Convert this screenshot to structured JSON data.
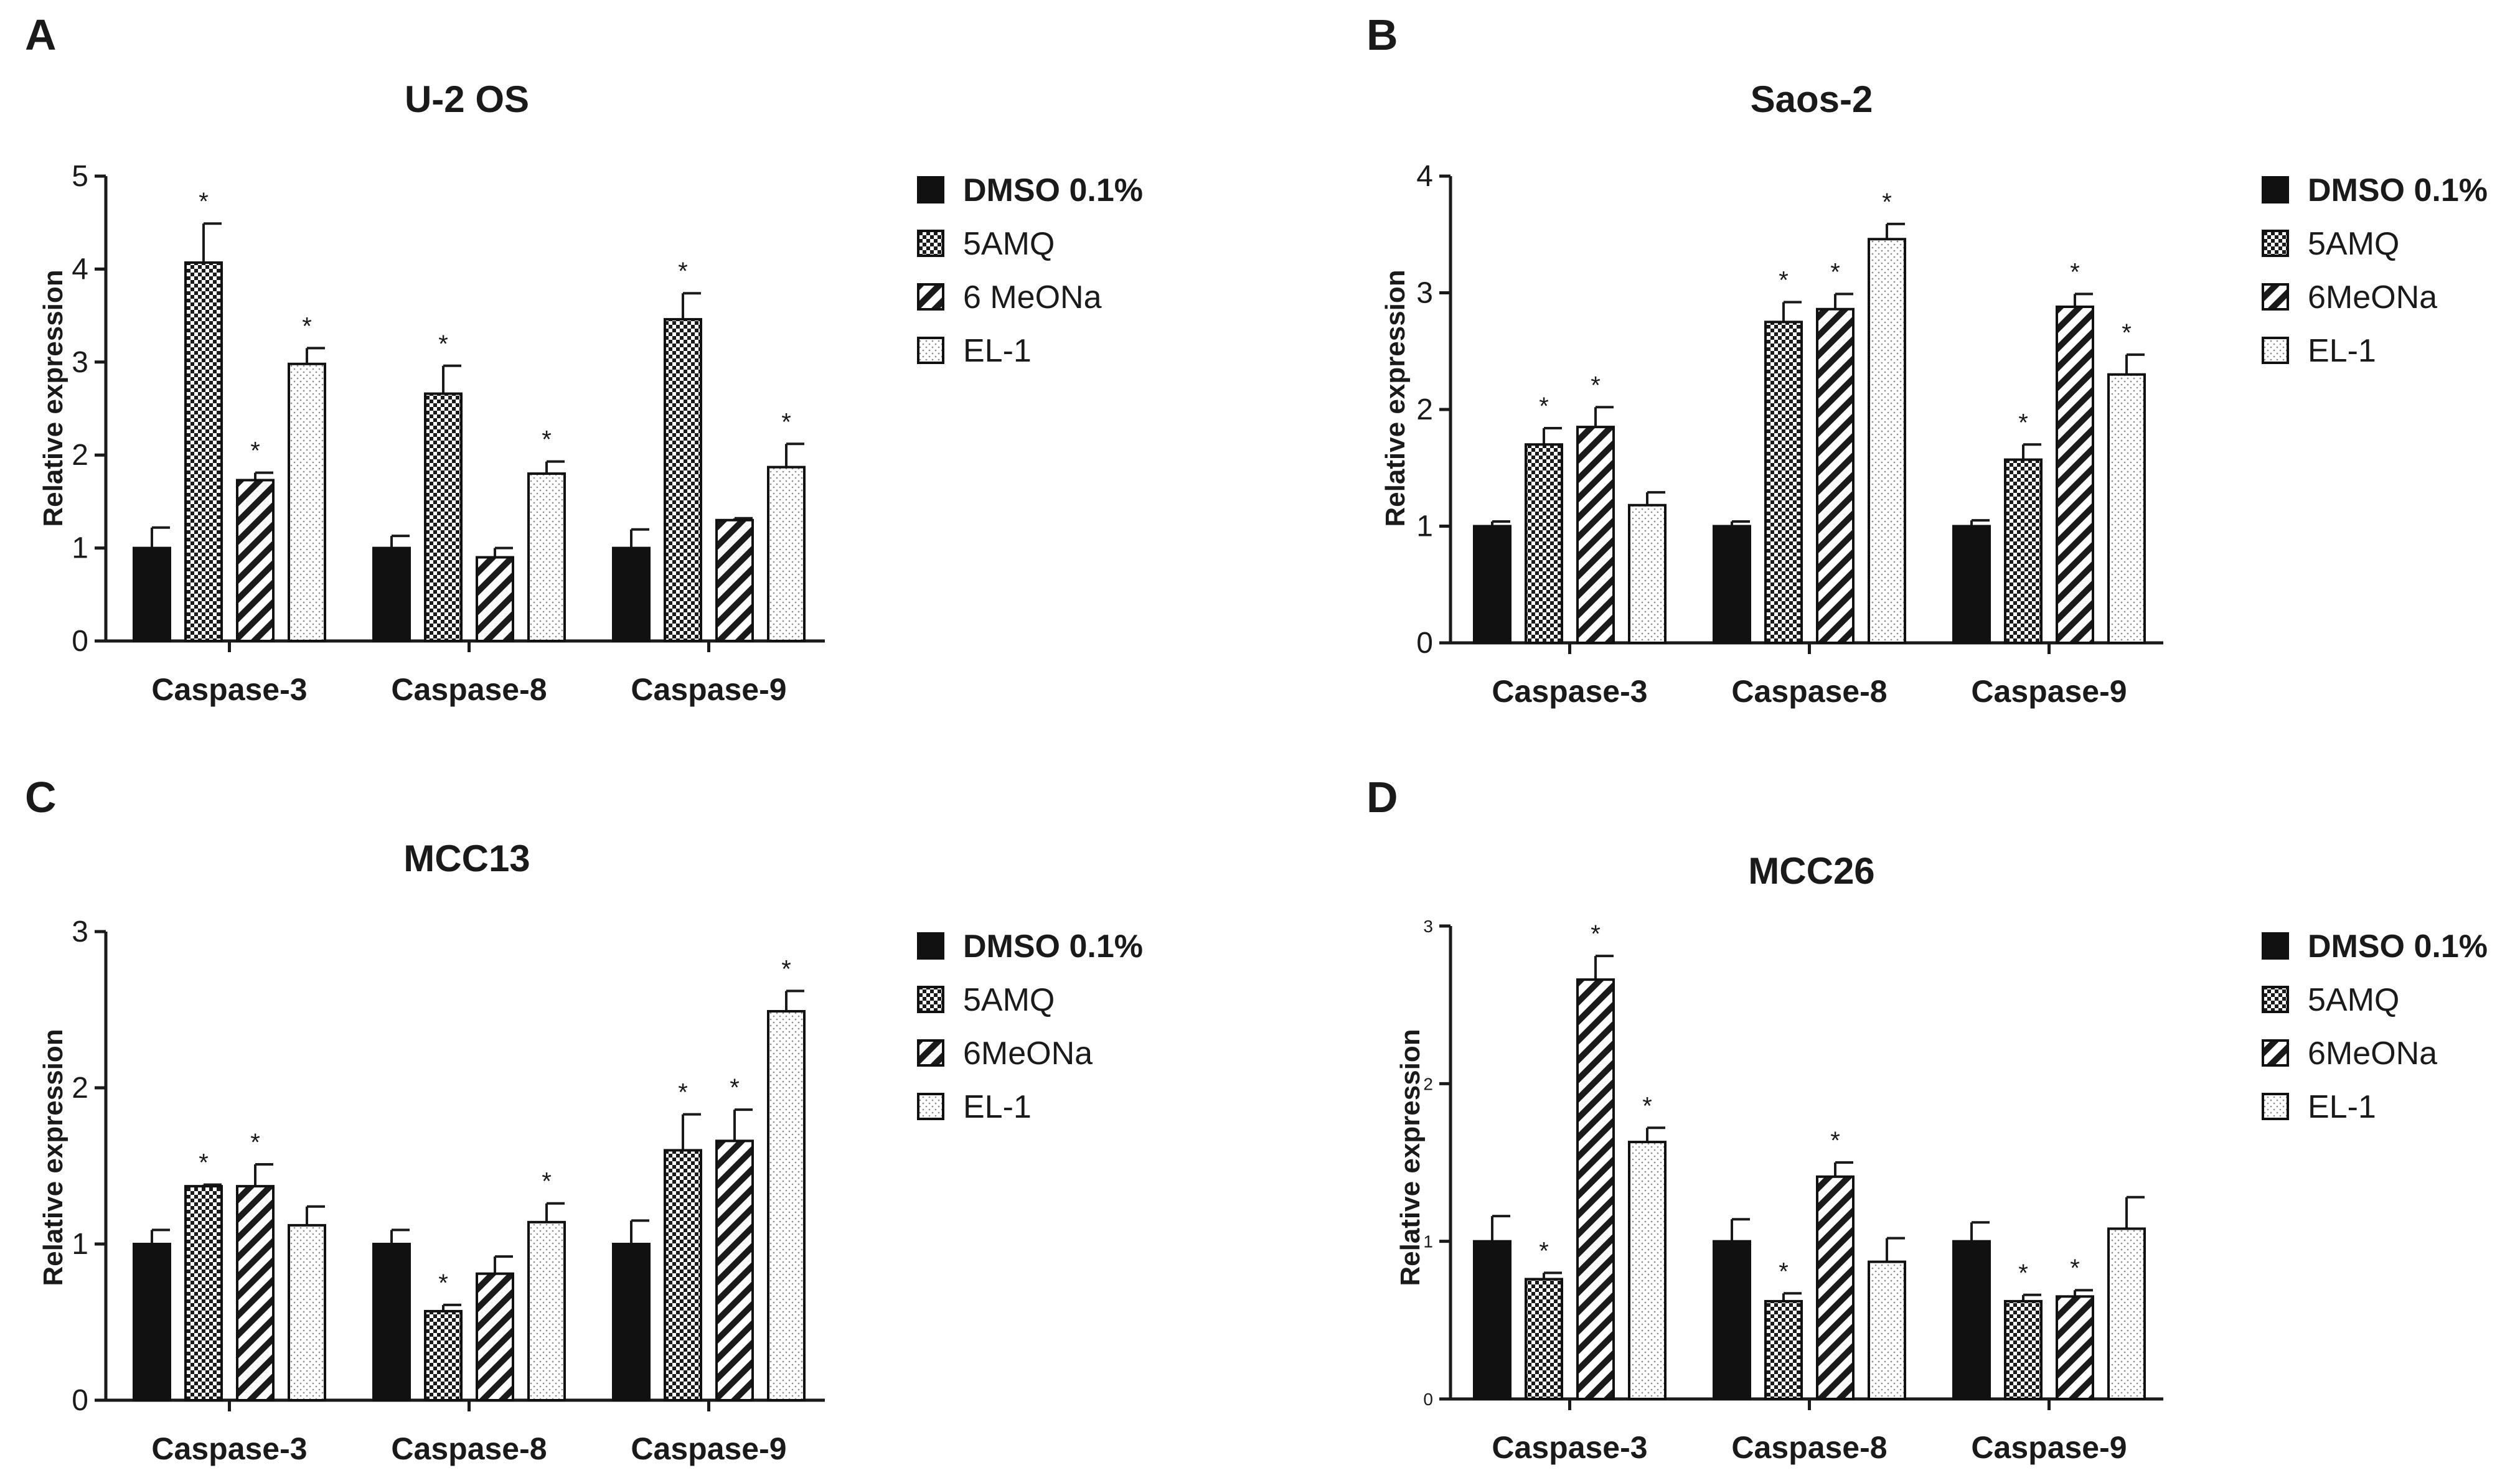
{
  "figure": {
    "legend_series": [
      "DMSO 0.1%",
      "5AMQ",
      "6 MeONa",
      "EL-1"
    ]
  },
  "chart_data": [
    {
      "type": "bar",
      "panel": "A",
      "title": "U-2 OS",
      "ylabel": "Relative expression",
      "xlabel": "",
      "ylim": [
        0,
        5
      ],
      "yticks": [
        "0",
        "1",
        "2",
        "3",
        "4",
        "5"
      ],
      "categories": [
        "Caspase-3",
        "Caspase-8",
        "Caspase-9"
      ],
      "legend": [
        "DMSO 0.1%",
        "5AMQ",
        "6 MeONa",
        "EL-1"
      ],
      "series": [
        {
          "name": "DMSO 0.1%",
          "pattern": "solid",
          "values": [
            1.0,
            1.0,
            1.0
          ],
          "errors": [
            0.22,
            0.13,
            0.2
          ],
          "sig": [
            "",
            "",
            ""
          ]
        },
        {
          "name": "5AMQ",
          "pattern": "checker",
          "values": [
            4.07,
            2.66,
            3.46
          ],
          "errors": [
            0.42,
            0.3,
            0.28
          ],
          "sig": [
            "*",
            "*",
            "*"
          ]
        },
        {
          "name": "6 MeONa",
          "pattern": "hatch",
          "values": [
            1.73,
            0.9,
            1.3
          ],
          "errors": [
            0.08,
            0.1,
            0.02
          ],
          "sig": [
            "*",
            "",
            ""
          ]
        },
        {
          "name": "EL-1",
          "pattern": "dots",
          "values": [
            2.98,
            1.8,
            1.87
          ],
          "errors": [
            0.17,
            0.13,
            0.25
          ],
          "sig": [
            "*",
            "*",
            "*"
          ]
        }
      ]
    },
    {
      "type": "bar",
      "panel": "B",
      "title": "Saos-2",
      "ylabel": "Relative expression",
      "xlabel": "",
      "ylim": [
        0,
        4
      ],
      "yticks": [
        "0",
        "1",
        "2",
        "3",
        "4"
      ],
      "categories": [
        "Caspase-3",
        "Caspase-8",
        "Caspase-9"
      ],
      "legend": [
        "DMSO 0.1%",
        "5AMQ",
        "6MeONa",
        "EL-1"
      ],
      "series": [
        {
          "name": "DMSO 0.1%",
          "pattern": "solid",
          "values": [
            1.0,
            1.0,
            1.0
          ],
          "errors": [
            0.04,
            0.04,
            0.05
          ],
          "sig": [
            "",
            "",
            ""
          ]
        },
        {
          "name": "5AMQ",
          "pattern": "checker",
          "values": [
            1.7,
            2.75,
            1.57
          ],
          "errors": [
            0.14,
            0.17,
            0.13
          ],
          "sig": [
            "*",
            "*",
            "*"
          ]
        },
        {
          "name": "6MeONa",
          "pattern": "hatch",
          "values": [
            1.85,
            2.86,
            2.88
          ],
          "errors": [
            0.17,
            0.13,
            0.11
          ],
          "sig": [
            "*",
            "*",
            "*"
          ]
        },
        {
          "name": "EL-1",
          "pattern": "dots",
          "values": [
            1.18,
            3.46,
            2.3
          ],
          "errors": [
            0.11,
            0.13,
            0.17
          ],
          "sig": [
            "",
            "*",
            "*"
          ]
        }
      ]
    },
    {
      "type": "bar",
      "panel": "C",
      "title": "MCC13",
      "ylabel": "Relative expression",
      "xlabel": "",
      "ylim": [
        0,
        3
      ],
      "yticks": [
        "0",
        "1",
        "2",
        "3"
      ],
      "categories": [
        "Caspase-3",
        "Caspase-8",
        "Caspase-9"
      ],
      "legend": [
        "DMSO 0.1%",
        "5AMQ",
        "6MeONa",
        "EL-1"
      ],
      "series": [
        {
          "name": "DMSO 0.1%",
          "pattern": "solid",
          "values": [
            1.0,
            1.0,
            1.0
          ],
          "errors": [
            0.09,
            0.09,
            0.15
          ],
          "sig": [
            "",
            "",
            ""
          ]
        },
        {
          "name": "5AMQ",
          "pattern": "checker",
          "values": [
            1.37,
            0.57,
            1.6
          ],
          "errors": [
            0.01,
            0.04,
            0.23
          ],
          "sig": [
            "*",
            "*",
            "*"
          ]
        },
        {
          "name": "6MeONa",
          "pattern": "hatch",
          "values": [
            1.37,
            0.81,
            1.66
          ],
          "errors": [
            0.14,
            0.11,
            0.2
          ],
          "sig": [
            "*",
            "",
            "*"
          ]
        },
        {
          "name": "EL-1",
          "pattern": "dots",
          "values": [
            1.12,
            1.14,
            2.49
          ],
          "errors": [
            0.12,
            0.12,
            0.13
          ],
          "sig": [
            "",
            "*",
            "*"
          ]
        }
      ]
    },
    {
      "type": "bar",
      "panel": "D",
      "title": "MCC26",
      "ylabel": "Relative expression",
      "xlabel": "",
      "ylim": [
        0,
        3
      ],
      "yticks": [
        "0",
        "1",
        "2",
        "3"
      ],
      "categories": [
        "Caspase-3",
        "Caspase-8",
        "Caspase-9"
      ],
      "legend": [
        "DMSO 0.1%",
        "5AMQ",
        "6MeONa",
        "EL-1"
      ],
      "series": [
        {
          "name": "DMSO 0.1%",
          "pattern": "solid",
          "values": [
            1.0,
            1.0,
            1.0
          ],
          "errors": [
            0.16,
            0.14,
            0.12
          ],
          "sig": [
            "",
            "",
            ""
          ]
        },
        {
          "name": "5AMQ",
          "pattern": "checker",
          "values": [
            0.76,
            0.62,
            0.62
          ],
          "errors": [
            0.04,
            0.05,
            0.04
          ],
          "sig": [
            "*",
            "*",
            "*"
          ]
        },
        {
          "name": "6MeONa",
          "pattern": "hatch",
          "values": [
            2.66,
            1.41,
            0.65
          ],
          "errors": [
            0.15,
            0.09,
            0.04
          ],
          "sig": [
            "*",
            "*",
            "*"
          ]
        },
        {
          "name": "EL-1",
          "pattern": "dots",
          "values": [
            1.63,
            0.87,
            1.08
          ],
          "errors": [
            0.09,
            0.15,
            0.2
          ],
          "sig": [
            "*",
            "",
            ""
          ]
        }
      ]
    }
  ]
}
